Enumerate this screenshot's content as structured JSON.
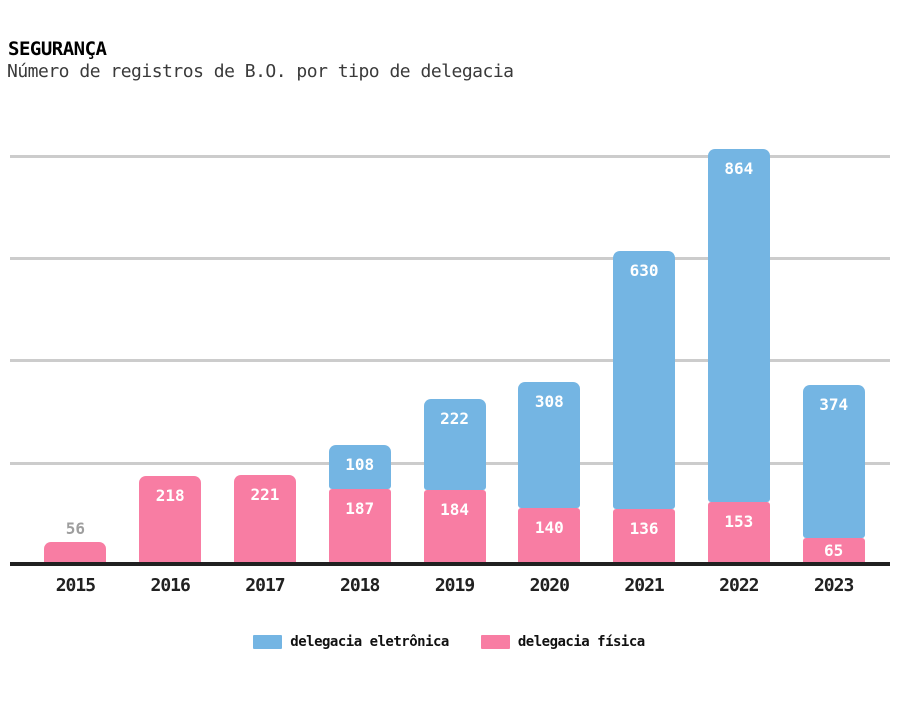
{
  "header": {
    "title": "SEGURANÇA",
    "subtitle": "Número de registros de B.O. por tipo de delegacia"
  },
  "chart_data": {
    "type": "bar",
    "stacked": true,
    "title": "SEGURANÇA",
    "subtitle": "Número de registros de B.O. por tipo de delegacia",
    "categories": [
      "2015",
      "2016",
      "2017",
      "2018",
      "2019",
      "2020",
      "2021",
      "2022",
      "2023"
    ],
    "series": [
      {
        "name": "delegacia eletrônica",
        "color": "#74b5e3",
        "values": [
          0,
          0,
          0,
          108,
          222,
          308,
          630,
          864,
          374
        ]
      },
      {
        "name": "delegacia física",
        "color": "#f87da3",
        "values": [
          56,
          218,
          221,
          187,
          184,
          140,
          136,
          153,
          65
        ]
      }
    ],
    "totals": [
      56,
      218,
      221,
      295,
      406,
      448,
      766,
      1017,
      439
    ],
    "xlabel": "",
    "ylabel": "",
    "ylim": [
      0,
      1040
    ],
    "gridline_values": [
      250,
      500,
      750,
      1000
    ],
    "grid": true,
    "legend_position": "bottom",
    "colors": {
      "gridline": "#cccccc",
      "axis": "#212121",
      "label_inside": "#ffffff",
      "label_outside": "#9e9e9e",
      "tick_label": "#212121"
    }
  },
  "legend": {
    "items": [
      {
        "label": "delegacia eletrônica",
        "color": "#74b5e3"
      },
      {
        "label": "delegacia física",
        "color": "#f87da3"
      }
    ]
  }
}
